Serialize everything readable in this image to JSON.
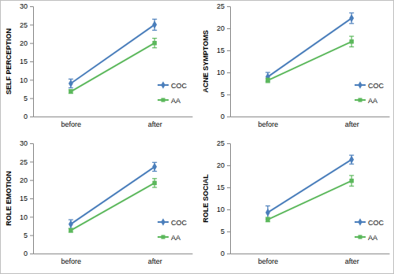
{
  "chart_data": [
    {
      "type": "line",
      "y_label": "SELF PERCEPTION",
      "categories": [
        "before",
        "after"
      ],
      "ylim": [
        0,
        30
      ],
      "yticks": [
        0,
        5,
        10,
        15,
        20,
        25,
        30
      ],
      "legend": "lower right",
      "series": [
        {
          "name": "COC",
          "color": "#4a7ebb",
          "marker": "diamond",
          "values": [
            9,
            25
          ],
          "errors": [
            1.2,
            1.5
          ]
        },
        {
          "name": "AA",
          "color": "#5cb85c",
          "marker": "square",
          "values": [
            6.8,
            20
          ],
          "errors": [
            0.5,
            1.3
          ]
        }
      ]
    },
    {
      "type": "line",
      "y_label": "ACNE SYMPTOMS",
      "categories": [
        "before",
        "after"
      ],
      "ylim": [
        0,
        25
      ],
      "yticks": [
        0,
        5,
        10,
        15,
        20,
        25
      ],
      "legend": "lower right",
      "series": [
        {
          "name": "COC",
          "color": "#4a7ebb",
          "marker": "diamond",
          "values": [
            9,
            22.3
          ],
          "errors": [
            1,
            1.2
          ]
        },
        {
          "name": "AA",
          "color": "#5cb85c",
          "marker": "square",
          "values": [
            8.2,
            17
          ],
          "errors": [
            0.5,
            1.2
          ]
        }
      ]
    },
    {
      "type": "line",
      "y_label": "ROLE EMOTION",
      "categories": [
        "before",
        "after"
      ],
      "ylim": [
        0,
        30
      ],
      "yticks": [
        0,
        5,
        10,
        15,
        20,
        25,
        30
      ],
      "legend": "lower right",
      "series": [
        {
          "name": "COC",
          "color": "#4a7ebb",
          "marker": "diamond",
          "values": [
            8,
            23.6
          ],
          "errors": [
            1.2,
            1.2
          ]
        },
        {
          "name": "AA",
          "color": "#5cb85c",
          "marker": "square",
          "values": [
            6.3,
            19.2
          ],
          "errors": [
            0.5,
            1.2
          ]
        }
      ]
    },
    {
      "type": "line",
      "y_label": "ROLE SOCIAL",
      "categories": [
        "before",
        "after"
      ],
      "ylim": [
        0,
        25
      ],
      "yticks": [
        0,
        5,
        10,
        15,
        20,
        25
      ],
      "legend": "lower right",
      "series": [
        {
          "name": "COC",
          "color": "#4a7ebb",
          "marker": "diamond",
          "values": [
            9.3,
            21.3
          ],
          "errors": [
            1.5,
            1
          ]
        },
        {
          "name": "AA",
          "color": "#5cb85c",
          "marker": "square",
          "values": [
            7.7,
            16.5
          ],
          "errors": [
            0.5,
            1.2
          ]
        }
      ]
    }
  ]
}
